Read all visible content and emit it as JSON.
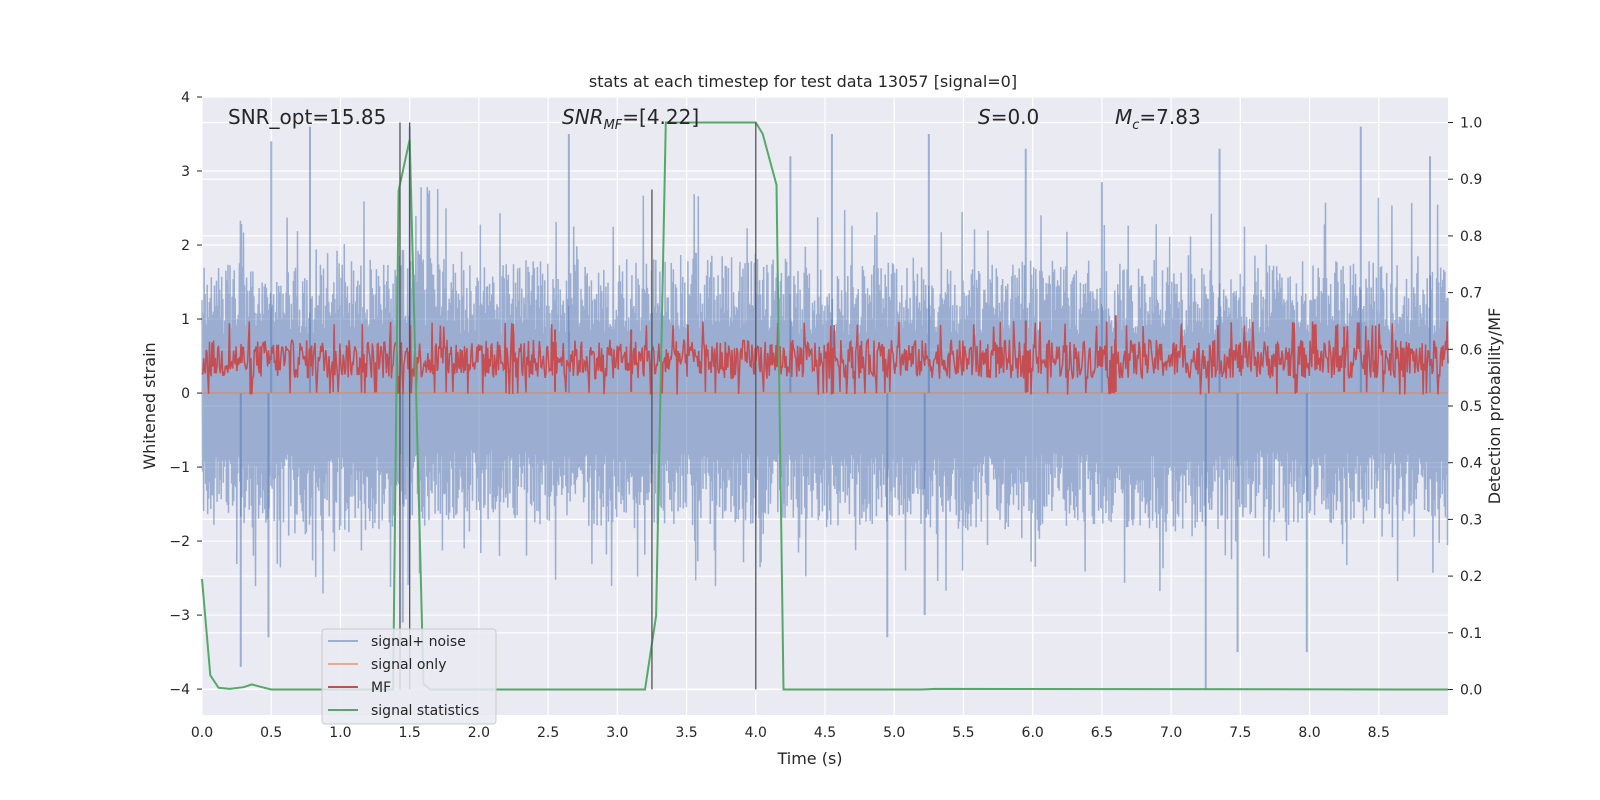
{
  "chart_data": {
    "type": "line",
    "title": "stats at each timestep for test data 13057 [signal=0]",
    "xlabel": "Time (s)",
    "ylabel": "Whitened strain",
    "y2label": "Detection probability/MF",
    "xlim": [
      0,
      9.0
    ],
    "ylim": [
      -4.35,
      4.0
    ],
    "y2lim": [
      -0.045,
      1.045
    ],
    "xticks": [
      "0.0",
      "0.5",
      "1.0",
      "1.5",
      "2.0",
      "2.5",
      "3.0",
      "3.5",
      "4.0",
      "4.5",
      "5.0",
      "5.5",
      "6.0",
      "6.5",
      "7.0",
      "7.5",
      "8.0",
      "8.5"
    ],
    "xtick_values": [
      0,
      0.5,
      1.0,
      1.5,
      2.0,
      2.5,
      3.0,
      3.5,
      4.0,
      4.5,
      5.0,
      5.5,
      6.0,
      6.5,
      7.0,
      7.5,
      8.0,
      8.5
    ],
    "yticks": [
      "4",
      "3",
      "2",
      "1",
      "0",
      "−1",
      "−2",
      "−3",
      "−4"
    ],
    "ytick_values": [
      4,
      3,
      2,
      1,
      0,
      -1,
      -2,
      -3,
      -4
    ],
    "y2ticks": [
      "1.0",
      "0.9",
      "0.8",
      "0.7",
      "0.6",
      "0.5",
      "0.4",
      "0.3",
      "0.2",
      "0.1",
      "0.0"
    ],
    "y2tick_values": [
      1.0,
      0.9,
      0.8,
      0.7,
      0.6,
      0.5,
      0.4,
      0.3,
      0.2,
      0.1,
      0.0
    ],
    "grid": true,
    "legend_placement": "lower-left",
    "annotations": {
      "snr_opt": "SNR_opt=15.85",
      "snr_mf_main": "SNR",
      "snr_mf_sub": "MF",
      "snr_mf_value": "=[4.22]",
      "s_main": "S",
      "s_value": "=0.0",
      "mc_main": "M",
      "mc_sub": "c",
      "mc_value": "=7.83"
    },
    "series": [
      {
        "name": "signal+ noise",
        "color": "#4c72b0",
        "alpha": 0.5,
        "envelope": {
          "x": [
            0.0,
            0.5,
            1.0,
            1.5,
            2.0,
            2.5,
            3.0,
            3.5,
            4.0,
            4.5,
            5.0,
            5.5,
            6.0,
            6.5,
            7.0,
            7.5,
            8.0,
            8.5,
            9.0
          ],
          "upper": [
            1.7,
            1.8,
            1.8,
            2.0,
            1.7,
            1.8,
            1.8,
            1.9,
            1.9,
            1.7,
            1.8,
            1.7,
            1.8,
            1.7,
            1.7,
            1.7,
            1.8,
            1.8,
            1.7
          ],
          "lower": [
            -1.8,
            -1.8,
            -1.9,
            -1.8,
            -1.7,
            -1.8,
            -1.8,
            -1.8,
            -1.8,
            -1.8,
            -1.8,
            -1.9,
            -1.8,
            -1.8,
            -1.9,
            -1.7,
            -1.8,
            -1.8,
            -1.7
          ]
        },
        "peaks": [
          [
            0.5,
            3.4
          ],
          [
            0.78,
            3.6
          ],
          [
            1.5,
            3.6
          ],
          [
            2.65,
            3.5
          ],
          [
            4.25,
            3.2
          ],
          [
            4.55,
            3.5
          ],
          [
            5.25,
            3.5
          ],
          [
            5.95,
            3.3
          ],
          [
            6.5,
            2.85
          ],
          [
            7.35,
            3.3
          ],
          [
            8.37,
            3.6
          ],
          [
            8.87,
            3.2
          ]
        ],
        "troughs": [
          [
            0.28,
            -3.7
          ],
          [
            0.48,
            -3.3
          ],
          [
            1.45,
            -3.1
          ],
          [
            4.95,
            -3.3
          ],
          [
            5.22,
            -3.0
          ],
          [
            7.25,
            -4.0
          ],
          [
            7.48,
            -3.5
          ],
          [
            7.98,
            -3.5
          ]
        ]
      },
      {
        "name": "signal only",
        "color": "#dd8452",
        "values_constant": 0.0
      },
      {
        "name": "MF",
        "color": "#c44e52",
        "axis": "right",
        "band": {
          "x": [
            0.0,
            9.0
          ],
          "upper": [
            0.64,
            0.64
          ],
          "lower": [
            0.525,
            0.525
          ]
        },
        "peaks": [
          [
            2.55,
            0.635
          ],
          [
            3.1,
            0.635
          ],
          [
            5.95,
            0.65
          ],
          [
            6.6,
            0.66
          ],
          [
            8.25,
            0.64
          ]
        ]
      },
      {
        "name": "signal statistics",
        "color": "#55a868",
        "axis": "right",
        "x": [
          0.0,
          0.06,
          0.12,
          0.2,
          0.3,
          0.36,
          0.42,
          0.5,
          1.0,
          1.38,
          1.42,
          1.5,
          1.6,
          1.65,
          2.0,
          3.2,
          3.28,
          3.35,
          4.0,
          4.05,
          4.15,
          4.2,
          4.5,
          5.2,
          5.3,
          9.0
        ],
        "values": [
          0.195,
          0.025,
          0.003,
          0.001,
          0.004,
          0.009,
          0.005,
          0.0,
          0.0,
          0.0,
          0.88,
          0.97,
          0.01,
          0.0,
          0.0,
          0.0,
          0.13,
          1.0,
          1.0,
          0.98,
          0.89,
          0.0,
          0.0,
          0.0,
          0.001,
          0.0
        ]
      }
    ],
    "vertical_markers": [
      {
        "x": 1.43,
        "y_top": 1.0
      },
      {
        "x": 1.5,
        "y_top": 1.0
      },
      {
        "x": 3.25,
        "y_top": 2.75
      },
      {
        "x": 4.0,
        "y_top": 1.0
      }
    ]
  }
}
